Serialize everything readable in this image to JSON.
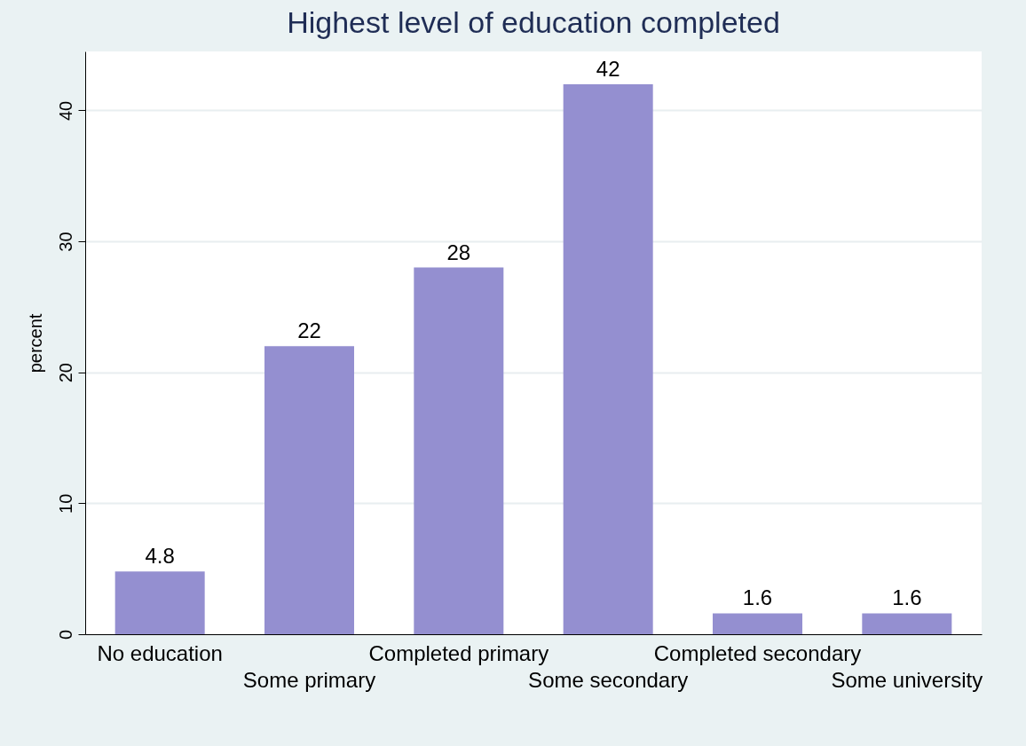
{
  "chart_data": {
    "type": "bar",
    "title": "Highest level of education completed",
    "ylabel": "percent",
    "categories": [
      "No education",
      "Some primary",
      "Completed primary",
      "Some secondary",
      "Completed secondary",
      "Some university"
    ],
    "values": [
      4.8,
      22,
      28,
      42,
      1.6,
      1.6
    ],
    "color": "#948fd0",
    "ylim": [
      0,
      44.5
    ],
    "yticks": [
      0,
      10,
      20,
      30,
      40
    ],
    "grid": "y",
    "data_labels": true
  }
}
